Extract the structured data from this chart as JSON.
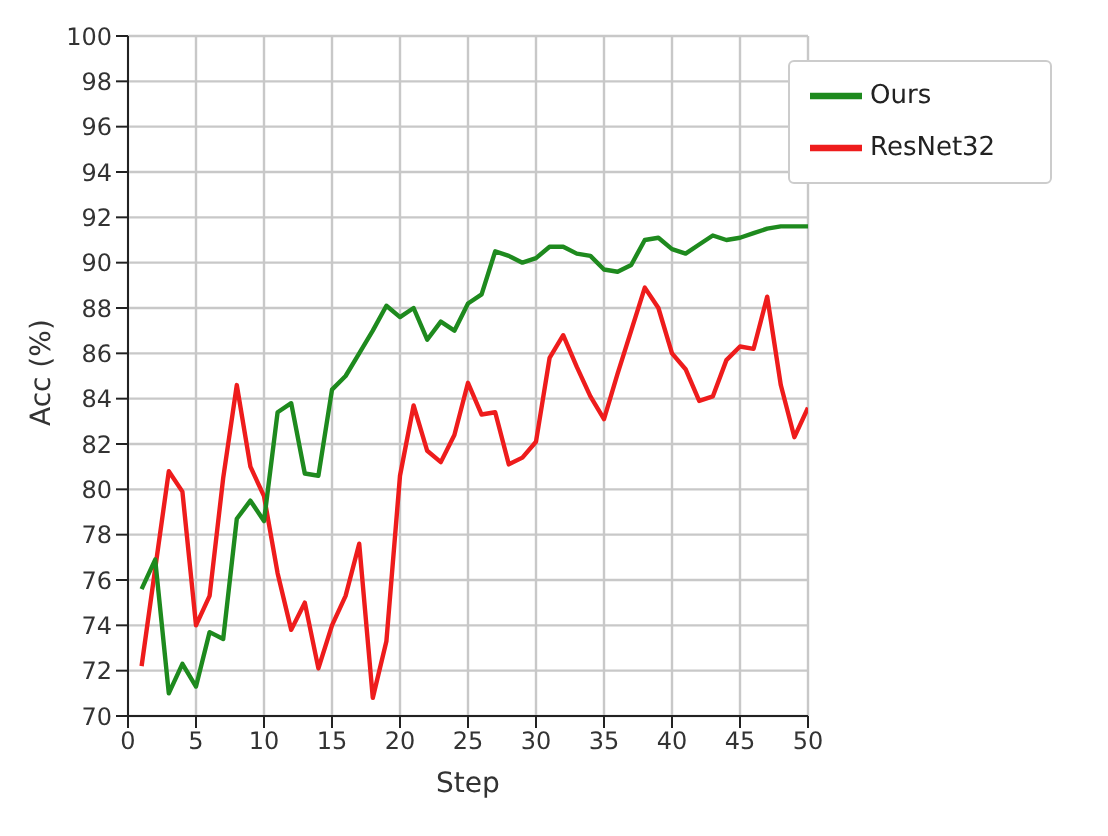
{
  "chart_data": {
    "type": "line",
    "xlabel": "Step",
    "ylabel": "Acc (%)",
    "x": [
      1,
      2,
      3,
      4,
      5,
      6,
      7,
      8,
      9,
      10,
      11,
      12,
      13,
      14,
      15,
      16,
      17,
      18,
      19,
      20,
      21,
      22,
      23,
      24,
      25,
      26,
      27,
      28,
      29,
      30,
      31,
      32,
      33,
      34,
      35,
      36,
      37,
      38,
      39,
      40,
      41,
      42,
      43,
      44,
      45,
      46,
      47,
      48,
      49,
      50
    ],
    "series": [
      {
        "name": "ResNet32",
        "color": "#ee1c1c",
        "values": [
          72.2,
          76.5,
          80.8,
          79.9,
          74.0,
          75.3,
          80.5,
          84.6,
          81.0,
          79.7,
          76.3,
          73.8,
          75.0,
          72.1,
          74.0,
          75.3,
          77.6,
          70.8,
          73.3,
          80.6,
          83.7,
          81.7,
          81.2,
          82.4,
          84.7,
          83.3,
          83.4,
          81.1,
          81.4,
          82.1,
          85.8,
          86.8,
          85.4,
          84.1,
          83.1,
          85.1,
          87.0,
          88.9,
          88.0,
          86.0,
          85.3,
          83.9,
          84.1,
          85.7,
          86.3,
          86.2,
          88.5,
          84.6,
          82.3,
          83.6
        ]
      },
      {
        "name": "Ours",
        "color": "#1e8a1e",
        "values": [
          75.6,
          76.9,
          71.0,
          72.3,
          71.3,
          73.7,
          73.4,
          78.7,
          79.5,
          78.6,
          83.4,
          83.8,
          80.7,
          80.6,
          84.4,
          85.0,
          86.0,
          87.0,
          88.1,
          87.6,
          88.0,
          86.6,
          87.4,
          87.0,
          88.2,
          88.6,
          90.5,
          90.3,
          90.0,
          90.2,
          90.7,
          90.7,
          90.4,
          90.3,
          89.7,
          89.6,
          89.9,
          91.0,
          91.1,
          90.6,
          90.4,
          90.8,
          91.2,
          91.0,
          91.1,
          91.3,
          91.5,
          91.6,
          91.6,
          91.6
        ]
      }
    ],
    "xlim": [
      0,
      50
    ],
    "xticks": [
      0,
      5,
      10,
      15,
      20,
      25,
      30,
      35,
      40,
      45,
      50
    ],
    "ylim": [
      70,
      100
    ],
    "yticks": [
      70,
      72,
      74,
      76,
      78,
      80,
      82,
      84,
      86,
      88,
      90,
      92,
      94,
      96,
      98,
      100
    ],
    "grid": true,
    "legend": "top right",
    "marker": "none",
    "line_style": "solid"
  }
}
